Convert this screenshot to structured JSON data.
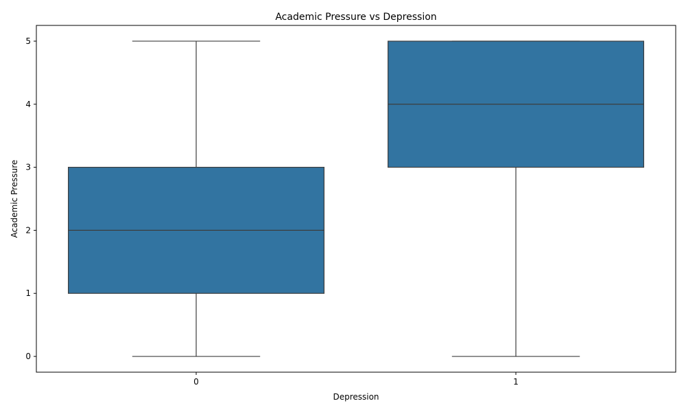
{
  "chart_data": {
    "type": "boxplot",
    "title": "Academic Pressure vs Depression",
    "xlabel": "Depression",
    "ylabel": "Academic Pressure",
    "categories": [
      "0",
      "1"
    ],
    "ylim": [
      -0.25,
      5.25
    ],
    "yticks": [
      0,
      1,
      2,
      3,
      4,
      5
    ],
    "grid": false,
    "legend": "none",
    "box_color": "#3274a1",
    "line_color": "#3d3d3d",
    "boxes": [
      {
        "category": "0",
        "min": 0,
        "q1": 1,
        "median": 2,
        "q3": 3,
        "max": 5
      },
      {
        "category": "1",
        "min": 0,
        "q1": 3,
        "median": 4,
        "q3": 5,
        "max": 5
      }
    ]
  }
}
